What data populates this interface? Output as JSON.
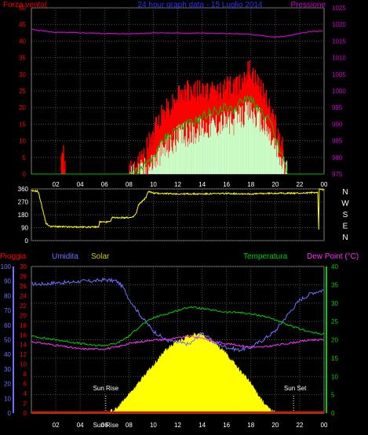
{
  "chart_data": [
    {
      "type": "line",
      "panel": "wind-pressure",
      "title": "24 hour graph data - 15 Luglio 2014",
      "left_axis_label": "Forza vento(",
      "right_axis_label": "Pressione",
      "x_ticks": [
        "02",
        "04",
        "06",
        "08",
        "10",
        "12",
        "14",
        "16",
        "18",
        "20",
        "22",
        "00"
      ],
      "xlim": [
        0,
        24
      ],
      "left_ylim": [
        0,
        50
      ],
      "left_ticks": [
        0,
        5,
        10,
        15,
        20,
        25,
        30,
        35,
        40,
        45,
        50
      ],
      "right_ylim": [
        975,
        1025
      ],
      "right_ticks": [
        975,
        980,
        985,
        990,
        995,
        1000,
        1005,
        1010,
        1015,
        1020,
        1025
      ],
      "grid": true,
      "series": [
        {
          "name": "Pressione",
          "color": "#d000d0",
          "axis": "right",
          "x": [
            0,
            2,
            4,
            6,
            8,
            10,
            12,
            14,
            16,
            18,
            19,
            20,
            21,
            22,
            23,
            24
          ],
          "values": [
            1018.5,
            1017.6,
            1017.5,
            1017.3,
            1017.2,
            1017.5,
            1017.4,
            1017.4,
            1017.3,
            1017.0,
            1016.5,
            1016.2,
            1016.5,
            1017.3,
            1017.9,
            1018.1
          ]
        },
        {
          "color": "#ff0000",
          "axis": "left",
          "style": "gust",
          "x": [
            0,
            2.4,
            2.6,
            2.8,
            4.5,
            6,
            7,
            8,
            9,
            9.5,
            10,
            10.5,
            11,
            11.5,
            12,
            13,
            14,
            15,
            16,
            16.5,
            17,
            17.5,
            18,
            18.5,
            19,
            19.5,
            20,
            20.5,
            21,
            24
          ],
          "values": [
            0,
            0,
            8,
            0,
            0,
            0,
            0,
            0,
            4,
            8,
            12,
            17,
            20,
            21,
            24,
            25,
            25,
            25,
            26,
            26,
            27,
            30,
            31,
            27,
            26,
            21,
            15,
            10,
            0,
            0
          ]
        },
        {
          "color": "#00c000",
          "axis": "left",
          "x": [
            0,
            8,
            9,
            9.5,
            10,
            10.5,
            11,
            11.5,
            12,
            13,
            14,
            15,
            16,
            16.5,
            17,
            17.5,
            18,
            18.5,
            19,
            19.5,
            20,
            20.5,
            21,
            24
          ],
          "values": [
            0,
            0,
            1,
            3,
            5,
            8,
            11,
            12,
            14,
            15,
            17,
            19,
            20,
            19,
            21,
            22,
            23,
            20,
            18,
            16,
            11,
            6,
            0,
            0
          ]
        },
        {
          "color": "#c8ffc8",
          "axis": "left",
          "style": "speed",
          "x": [
            0,
            8,
            9,
            9.5,
            10,
            10.5,
            11,
            11.5,
            12,
            13,
            14,
            15,
            16,
            16.5,
            17,
            17.5,
            18,
            18.5,
            19,
            19.5,
            20,
            20.5,
            21,
            24
          ],
          "values": [
            0,
            0,
            1,
            2,
            4,
            6,
            8,
            9,
            11,
            12,
            14,
            15,
            16,
            15,
            17,
            18,
            19,
            17,
            15,
            12,
            8,
            4,
            0,
            0
          ]
        }
      ]
    },
    {
      "type": "line",
      "panel": "wind-direction",
      "xlim": [
        0,
        24
      ],
      "ylim": [
        0,
        360
      ],
      "left_ticks": [
        0,
        90,
        180,
        270,
        360
      ],
      "right_labels": [
        "N",
        "W",
        "S",
        "E",
        "N"
      ],
      "grid": true,
      "series": [
        {
          "color": "#ffff00",
          "x": [
            0,
            0.5,
            0.6,
            1.2,
            1.5,
            3,
            4,
            5.5,
            5.6,
            6.5,
            6.6,
            8.3,
            8.6,
            8.8,
            9.4,
            9.6,
            10,
            12,
            14,
            16,
            18,
            20,
            22,
            23.5,
            23.55,
            23.6,
            24
          ],
          "values": [
            345,
            345,
            330,
            120,
            100,
            95,
            95,
            95,
            130,
            130,
            160,
            160,
            190,
            250,
            300,
            345,
            330,
            325,
            325,
            328,
            325,
            330,
            330,
            335,
            10,
            360,
            355
          ]
        }
      ]
    },
    {
      "type": "area",
      "panel": "weather",
      "labels": {
        "rain": "Pioggia",
        "humidity": "Umidita",
        "solar": "Solar",
        "temperature": "Temperatura",
        "dewpoint": "Dew Point (°C)"
      },
      "x_ticks": [
        "02",
        "04",
        "06",
        "08",
        "10",
        "12",
        "14",
        "16",
        "18",
        "20",
        "22",
        "00"
      ],
      "xlim": [
        0,
        24
      ],
      "humidity_ticks": [
        0,
        10,
        20,
        30,
        40,
        50,
        60,
        70,
        80,
        90,
        100
      ],
      "rain_ticks": [
        0,
        2,
        4,
        6,
        8,
        10,
        12,
        14,
        16,
        18,
        20,
        22,
        24,
        26,
        28,
        30
      ],
      "right_ylim": [
        0,
        40
      ],
      "right_ticks": [
        0,
        5,
        10,
        15,
        20,
        25,
        30,
        35,
        40
      ],
      "grid": true,
      "annotations": [
        "Sun Rise",
        "Sun Set",
        "Sun Rise"
      ],
      "series": [
        {
          "name": "Umidita",
          "color": "#7070ff",
          "axis": "humidity",
          "x": [
            0,
            1,
            2,
            3,
            4,
            5,
            6,
            7,
            7.5,
            8,
            9,
            10,
            11,
            12,
            13,
            14,
            15,
            16,
            17,
            18,
            19,
            20,
            21,
            22,
            23,
            24
          ],
          "values": [
            88,
            88,
            89,
            89,
            90,
            90,
            91,
            90,
            86,
            78,
            66,
            56,
            50,
            48,
            47,
            55,
            48,
            45,
            43,
            45,
            50,
            56,
            67,
            77,
            82,
            84
          ]
        },
        {
          "name": "Temperatura",
          "color": "#00d000",
          "axis": "right",
          "x": [
            0,
            1,
            2,
            3,
            4,
            5,
            6,
            7,
            8,
            9,
            10,
            11,
            12,
            13,
            14,
            15,
            16,
            17,
            18,
            19,
            20,
            21,
            22,
            23,
            24
          ],
          "values": [
            21,
            20.5,
            20,
            19.5,
            19,
            18.5,
            18.5,
            19,
            21,
            24,
            26,
            27,
            28,
            29,
            28.5,
            28,
            27.5,
            27.5,
            27,
            26.5,
            25.5,
            24,
            23,
            22,
            21.5
          ]
        },
        {
          "name": "Dew Point",
          "color": "#ff30ff",
          "axis": "right",
          "x": [
            0,
            1,
            2,
            3,
            4,
            5,
            6,
            7,
            8,
            9,
            10,
            11,
            12,
            13,
            14,
            15,
            16,
            17,
            18,
            19,
            20,
            21,
            22,
            23,
            24
          ],
          "values": [
            19.5,
            19,
            18.5,
            18,
            17.5,
            17.5,
            17.5,
            18,
            19,
            19.5,
            20,
            20,
            20.5,
            21,
            20.5,
            19.5,
            19,
            18.5,
            18,
            18,
            18.5,
            19,
            19.5,
            20,
            20
          ]
        },
        {
          "name": "Solar",
          "color": "#ffff00",
          "axis": "right",
          "style": "fill",
          "x": [
            0,
            6.2,
            7,
            8,
            9,
            10,
            11,
            12,
            13,
            13.6,
            14,
            15,
            16,
            17,
            18,
            19,
            19.5,
            20,
            24
          ],
          "values": [
            0,
            0,
            1,
            5,
            9,
            13,
            17,
            19.5,
            21,
            21.5,
            21,
            19,
            16,
            12,
            8,
            3,
            1,
            0,
            0
          ]
        },
        {
          "name": "Pioggia",
          "color": "#ff0000",
          "axis": "rain",
          "x": [
            0,
            24
          ],
          "values": [
            0,
            0
          ]
        }
      ]
    }
  ]
}
